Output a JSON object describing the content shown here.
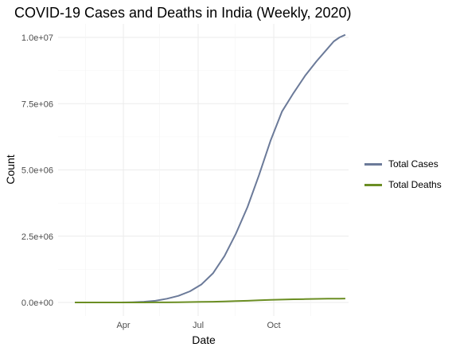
{
  "chart_data": {
    "type": "line",
    "title": "COVID-19 Cases and Deaths in India (Weekly, 2020)",
    "xlabel": "Date",
    "ylabel": "Count",
    "x_ticks": [
      "Apr",
      "Jul",
      "Oct"
    ],
    "y_ticks": [
      "0.0e+00",
      "2.5e+06",
      "5.0e+06",
      "7.5e+06",
      "1.0e+07"
    ],
    "ylim": [
      0,
      10000000
    ],
    "xlim": [
      "2020-01-30",
      "2020-12-31"
    ],
    "grid": true,
    "legend_position": "right",
    "x": [
      "2020-02-02",
      "2020-02-16",
      "2020-03-01",
      "2020-03-15",
      "2020-03-29",
      "2020-04-12",
      "2020-04-26",
      "2020-05-10",
      "2020-05-24",
      "2020-06-07",
      "2020-06-21",
      "2020-07-05",
      "2020-07-19",
      "2020-08-02",
      "2020-08-16",
      "2020-08-30",
      "2020-09-13",
      "2020-09-27",
      "2020-10-11",
      "2020-10-25",
      "2020-11-08",
      "2020-11-22",
      "2020-12-06",
      "2020-12-13",
      "2020-12-20",
      "2020-12-27"
    ],
    "series": [
      {
        "name": "Total Cases",
        "color": "#6b7a99",
        "values": [
          3,
          3,
          3,
          110,
          1100,
          9000,
          26000,
          63000,
          140000,
          250000,
          420000,
          680000,
          1100000,
          1750000,
          2600000,
          3600000,
          4800000,
          6100000,
          7200000,
          7900000,
          8550000,
          9100000,
          9600000,
          9850000,
          10000000,
          10100000
        ]
      },
      {
        "name": "Total Deaths",
        "color": "#6b8e23",
        "values": [
          0,
          0,
          0,
          2,
          30,
          300,
          800,
          2100,
          4200,
          7200,
          13700,
          19700,
          28000,
          38000,
          50000,
          64000,
          80000,
          95000,
          109000,
          119000,
          127000,
          134000,
          140000,
          143000,
          145000,
          148000
        ]
      }
    ]
  }
}
